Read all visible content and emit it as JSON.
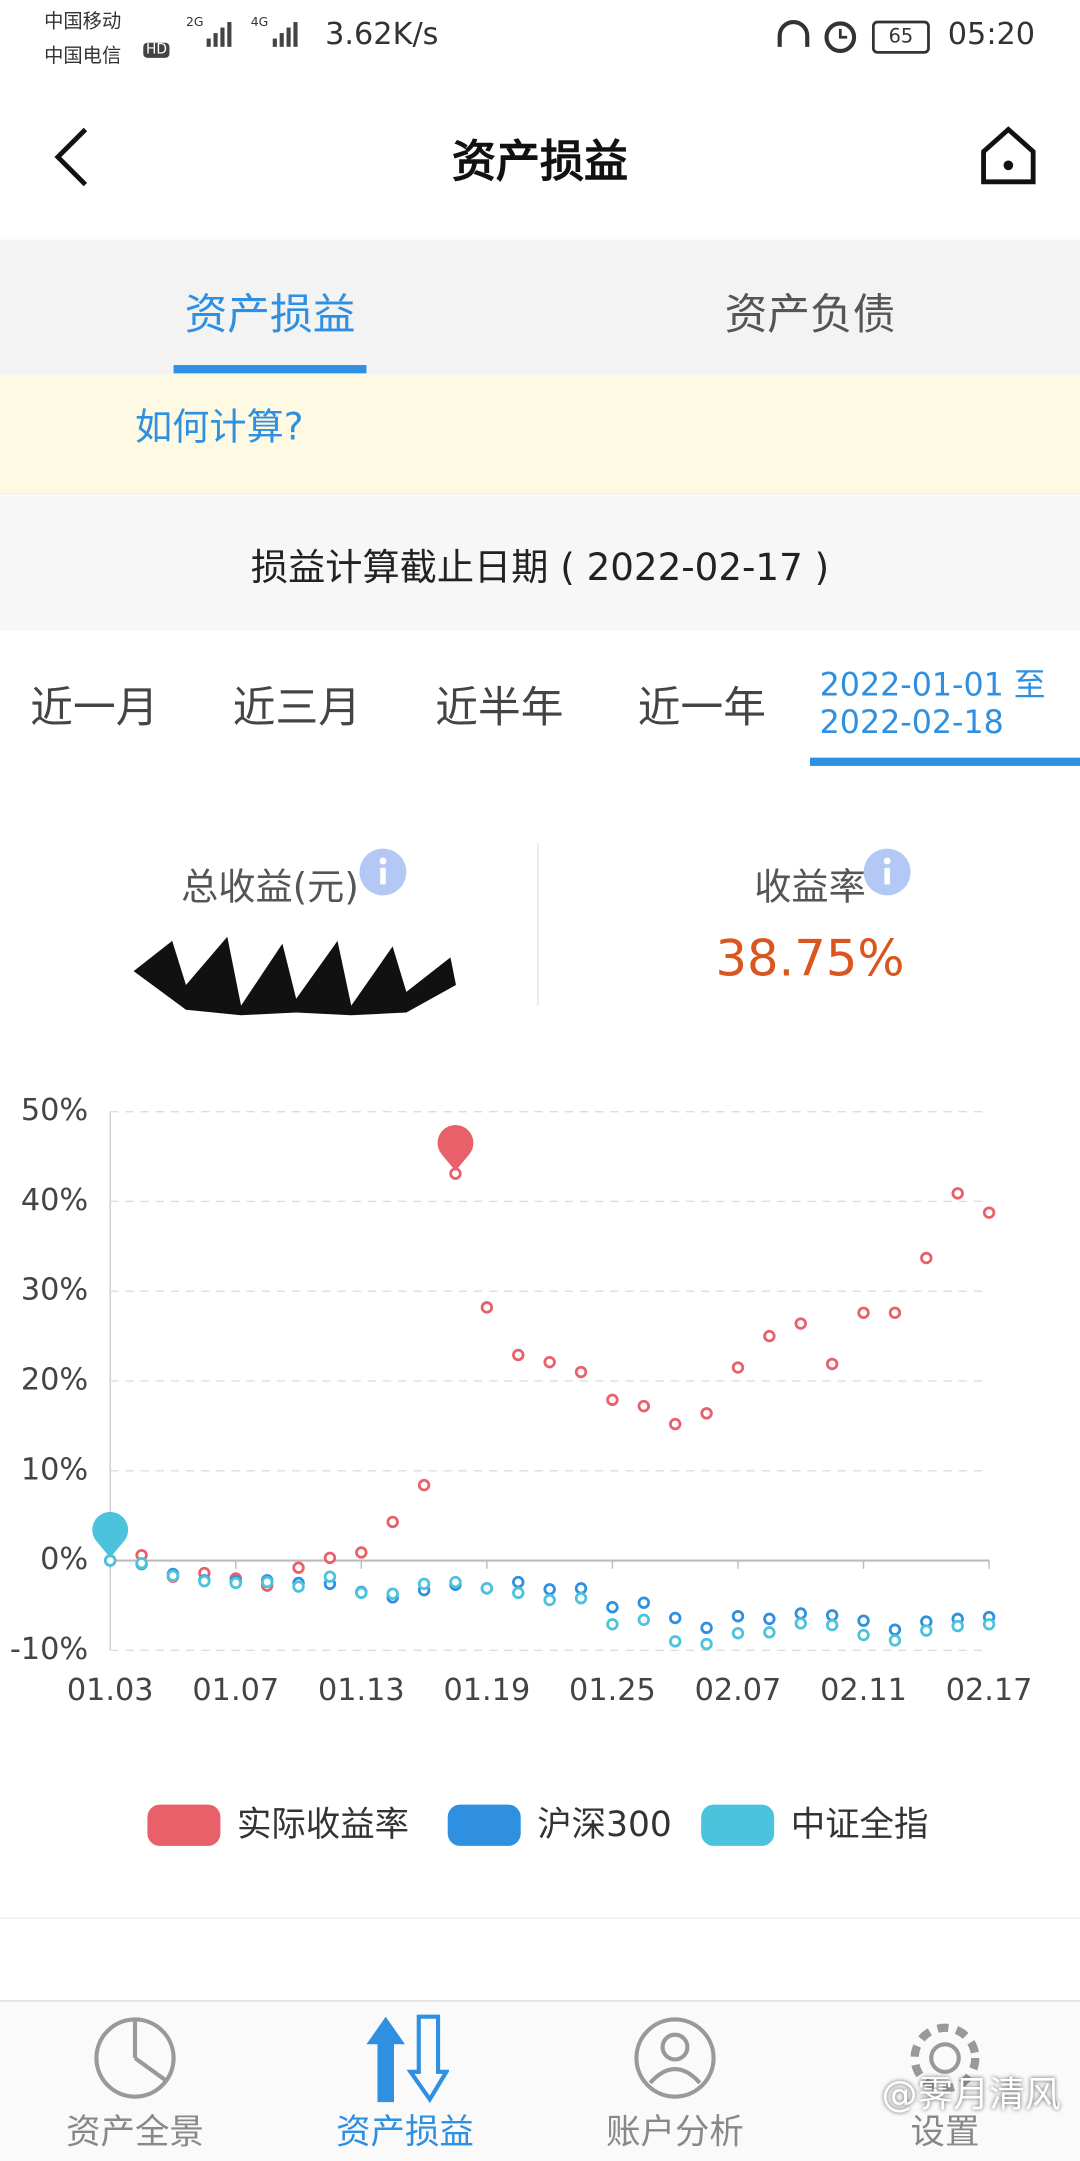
{
  "status_bar": {
    "carrier_1": "中国移动",
    "carrier_2": "中国电信",
    "hd": "HD",
    "net_1": "2G",
    "net_2": "4G",
    "speed": "3.62K/s",
    "battery": "65",
    "time": "05:20"
  },
  "header": {
    "title": "资产损益"
  },
  "tabs": [
    "资产损益",
    "资产负债"
  ],
  "notice": {
    "link": "如何计算?"
  },
  "cutoff": {
    "label": "损益计算截止日期",
    "date": "2022-02-17"
  },
  "periods": [
    "近一月",
    "近三月",
    "近半年",
    "近一年"
  ],
  "custom_range": {
    "start": "2022-01-01",
    "sep": "至",
    "end": "2022-02-18"
  },
  "summary": {
    "total_label": "总收益(元)",
    "rate_label": "收益率",
    "rate_value": "38.75%"
  },
  "chart_data": {
    "type": "line",
    "categories": [
      "01.03",
      null,
      null,
      null,
      "01.07",
      null,
      null,
      null,
      "01.13",
      null,
      null,
      null,
      "01.19",
      null,
      null,
      null,
      "01.25",
      null,
      null,
      null,
      "02.07",
      null,
      null,
      null,
      "02.11",
      null,
      null,
      null,
      "02.17"
    ],
    "series": [
      {
        "name": "实际收益率",
        "color": "#e8606a",
        "values": [
          0,
          0.6,
          -1.8,
          -1.4,
          -2.0,
          -2.8,
          -0.8,
          0.3,
          0.9,
          4.3,
          8.4,
          43.1,
          28.2,
          22.9,
          22.1,
          21.0,
          17.9,
          17.2,
          15.2,
          16.4,
          21.5,
          25.0,
          26.4,
          21.9,
          27.6,
          27.6,
          33.7,
          40.9,
          38.75
        ]
      },
      {
        "name": "沪深300",
        "color": "#2f8fe0",
        "values": [
          0,
          -0.4,
          -1.5,
          -2.2,
          -2.3,
          -2.2,
          -2.5,
          -2.6,
          -3.5,
          -4.1,
          -3.3,
          -2.7,
          -3.1,
          -2.4,
          -3.2,
          -3.1,
          -5.2,
          -4.7,
          -6.4,
          -7.5,
          -6.2,
          -6.5,
          -5.9,
          -6.1,
          -6.7,
          -7.7,
          -6.8,
          -6.5,
          -6.3
        ]
      },
      {
        "name": "中证全指",
        "color": "#4cc3dc",
        "values": [
          0,
          -0.3,
          -1.7,
          -2.3,
          -2.5,
          -2.4,
          -2.9,
          -1.8,
          -3.6,
          -3.7,
          -2.6,
          -2.4,
          -3.1,
          -3.6,
          -4.4,
          -4.2,
          -7.1,
          -6.6,
          -9.0,
          -9.3,
          -8.1,
          -8.0,
          -7.0,
          -7.2,
          -8.3,
          -8.9,
          -7.8,
          -7.3,
          -7.1
        ]
      }
    ],
    "ylim": [
      -10,
      50
    ],
    "yticks": [
      {
        "value": -10,
        "label": "-10%"
      },
      {
        "value": 0,
        "label": "0%"
      },
      {
        "value": 10,
        "label": "10%"
      },
      {
        "value": 20,
        "label": "20%"
      },
      {
        "value": 30,
        "label": "30%"
      },
      {
        "value": 40,
        "label": "40%"
      },
      {
        "value": 50,
        "label": "50%"
      }
    ],
    "grid": true,
    "legend": "bottom"
  },
  "bottom_nav": [
    "资产全景",
    "资产损益",
    "账户分析",
    "设置"
  ],
  "watermark": "@霁月清风"
}
